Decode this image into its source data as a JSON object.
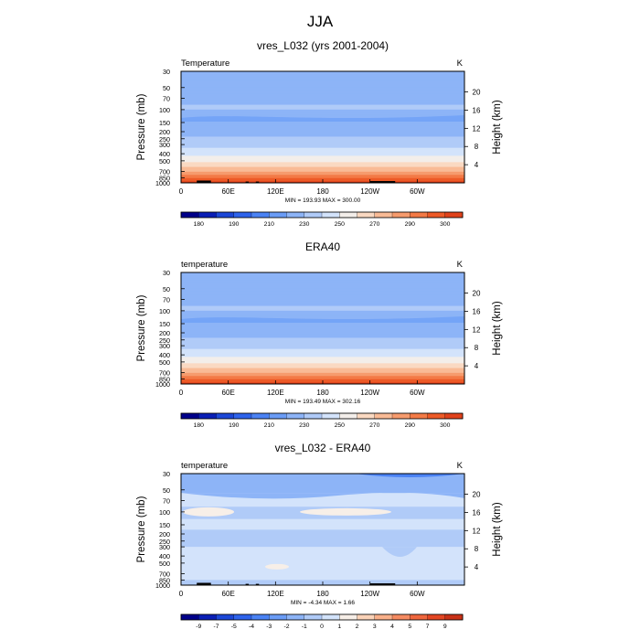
{
  "figure": {
    "title": "JJA"
  },
  "palette": {
    "temperature": [
      "#00008a",
      "#0a1fb6",
      "#1c47d7",
      "#2e63eb",
      "#4a82f4",
      "#6a9cf6",
      "#8db4f7",
      "#b0cbf8",
      "#d3e3fb",
      "#f3eeea",
      "#fad9c2",
      "#f9bb96",
      "#f69b6d",
      "#f37a46",
      "#ed5a27",
      "#e0421b",
      "#c83016",
      "#a01a10",
      "#6e0a0a"
    ],
    "difference": [
      "#00008a",
      "#0a1fb6",
      "#1c47d7",
      "#2e63eb",
      "#4a82f4",
      "#6a9cf6",
      "#8db4f7",
      "#b0cbf8",
      "#d3e3fb",
      "#f7efe8",
      "#fbd3b8",
      "#f9b08a",
      "#f58b61",
      "#ef663d",
      "#e34623",
      "#c93117",
      "#a01a10",
      "#6e0a0a"
    ]
  },
  "chart_data": [
    {
      "type": "heatmap",
      "id": "model",
      "title": "vres_L032 (yrs 2001-2004)",
      "left_label": "Temperature",
      "units": "K",
      "ylabel": "Pressure (mb)",
      "y2label": "Height (km)",
      "xticks": [
        "0",
        "60E",
        "120E",
        "180",
        "120W",
        "60W"
      ],
      "xlim": [
        0,
        360
      ],
      "yticks": [
        "30",
        "50",
        "70",
        "100",
        "150",
        "200",
        "250",
        "300",
        "400",
        "500",
        "700",
        "850",
        "1000"
      ],
      "ylim": [
        30,
        1000
      ],
      "y2ticks": [
        "20",
        "16",
        "12",
        "8",
        "4"
      ],
      "stats": "MIN = 193.93  MAX = 300.00",
      "min": 193.93,
      "max": 300.0,
      "colorbar_labels": [
        "180",
        "190",
        "210",
        "230",
        "250",
        "270",
        "290",
        "300"
      ],
      "levels": [
        170,
        175,
        180,
        185,
        190,
        200,
        210,
        220,
        230,
        240,
        250,
        260,
        270,
        280,
        290,
        295,
        300,
        305
      ]
    },
    {
      "type": "heatmap",
      "id": "obs",
      "title": "ERA40",
      "left_label": "temperature",
      "units": "K",
      "ylabel": "Pressure (mb)",
      "y2label": "Height (km)",
      "xticks": [
        "0",
        "60E",
        "120E",
        "180",
        "120W",
        "60W"
      ],
      "xlim": [
        0,
        360
      ],
      "yticks": [
        "30",
        "50",
        "70",
        "100",
        "150",
        "200",
        "250",
        "300",
        "400",
        "500",
        "700",
        "850",
        "1000"
      ],
      "ylim": [
        30,
        1000
      ],
      "y2ticks": [
        "20",
        "16",
        "12",
        "8",
        "4"
      ],
      "stats": "MIN = 193.49  MAX = 302.16",
      "min": 193.49,
      "max": 302.16,
      "colorbar_labels": [
        "180",
        "190",
        "210",
        "230",
        "250",
        "270",
        "290",
        "300"
      ],
      "levels": [
        170,
        175,
        180,
        185,
        190,
        200,
        210,
        220,
        230,
        240,
        250,
        260,
        270,
        280,
        290,
        295,
        300,
        305
      ]
    },
    {
      "type": "heatmap",
      "id": "diff",
      "title": "vres_L032 - ERA40",
      "left_label": "temperature",
      "units": "K",
      "ylabel": "Pressure (mb)",
      "y2label": "Height (km)",
      "xticks": [
        "0",
        "60E",
        "120E",
        "180",
        "120W",
        "60W"
      ],
      "xlim": [
        0,
        360
      ],
      "yticks": [
        "30",
        "50",
        "70",
        "100",
        "150",
        "200",
        "250",
        "300",
        "400",
        "500",
        "700",
        "850",
        "1000"
      ],
      "ylim": [
        30,
        1000
      ],
      "y2ticks": [
        "20",
        "16",
        "12",
        "8",
        "4"
      ],
      "stats": "MIN =  -4.34  MAX =   1.66",
      "min": -4.34,
      "max": 1.66,
      "colorbar_labels": [
        "-9",
        "-7",
        "-5",
        "-4",
        "-3",
        "-2",
        "-1",
        "0",
        "1",
        "2",
        "3",
        "4",
        "5",
        "7",
        "9"
      ],
      "levels": [
        -9,
        -7,
        -5,
        -4,
        -3,
        -2,
        -1,
        0,
        1,
        2,
        3,
        4,
        5,
        7,
        9
      ]
    }
  ]
}
